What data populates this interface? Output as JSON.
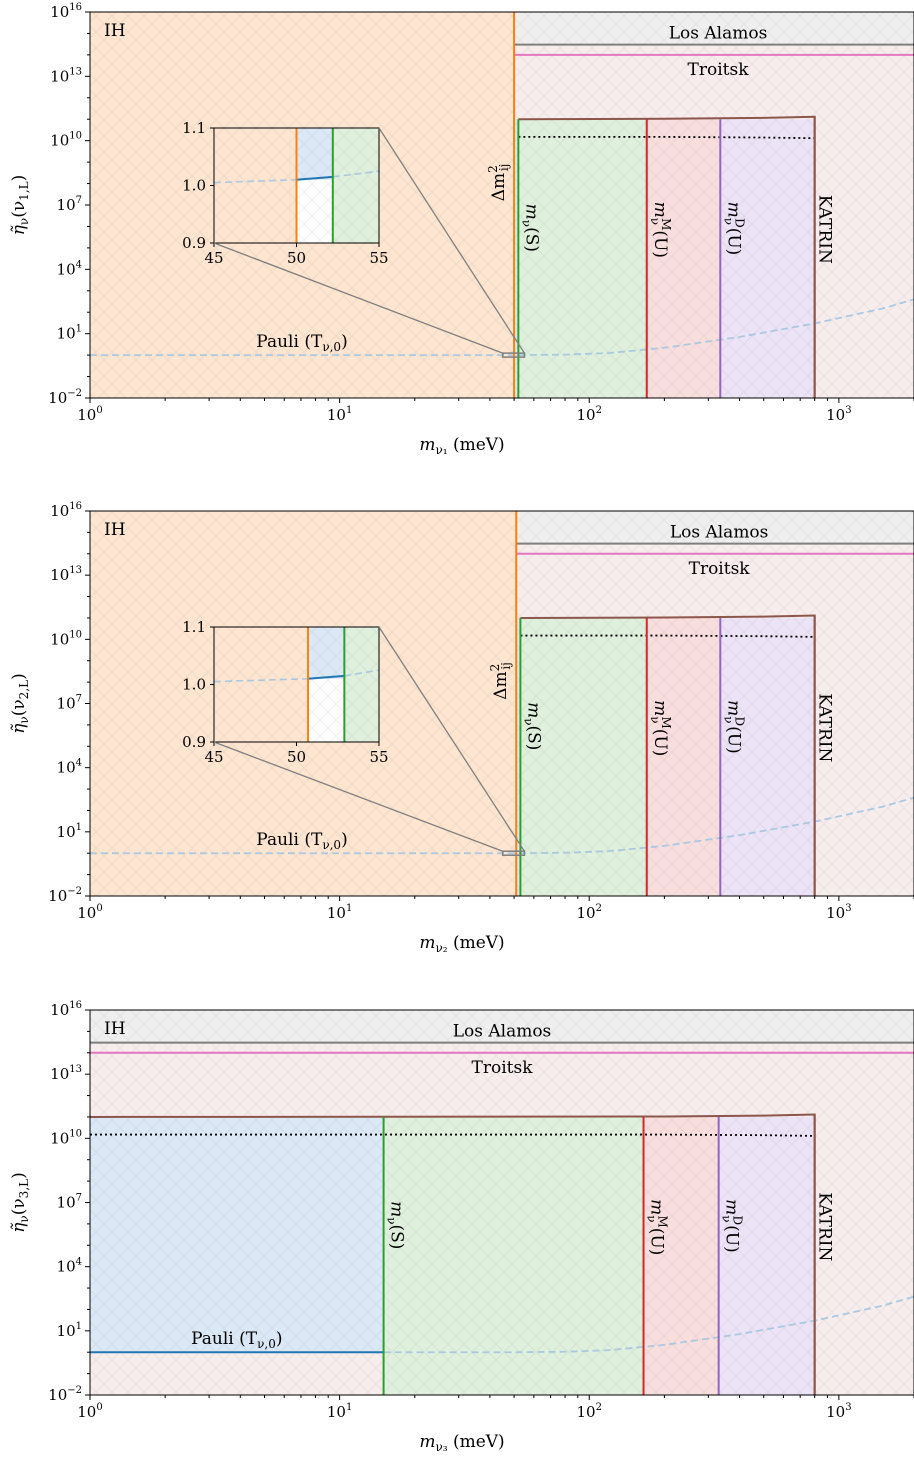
{
  "figure": {
    "subplots": [
      {
        "panel_label": "IH",
        "xlabel": {
          "main": "m",
          "sub": "ν₁",
          "unit": " (meV)"
        },
        "ylabel": {
          "prefix": "η̃",
          "sub": "ν",
          "arg": "(ν",
          "arg_sub": "1,L",
          "arg_end": ")"
        },
        "annotations": {
          "los_alamos": "Los Alamos",
          "troitsk": "Troitsk",
          "pauli": "Pauli (T",
          "pauli_sub": "ν,0",
          "pauli_end": ")",
          "dm2": "Δm",
          "dm2_sup": "2",
          "dm2_sub": "ij",
          "ms": "m",
          "ms_sub": "ν",
          "ms_arg": "(S)",
          "mm": "m",
          "mm_sup": "M",
          "mm_sub": "ν",
          "mm_arg": "(U)",
          "md": "m",
          "md_sup": "D",
          "md_sub": "ν",
          "md_arg": "(U)",
          "katrin": "KATRIN"
        },
        "inset": {
          "yticks": [
            "1.1",
            "1.0",
            "0.9"
          ],
          "xticks": [
            "45",
            "50",
            "55"
          ]
        }
      },
      {
        "panel_label": "IH",
        "xlabel": {
          "main": "m",
          "sub": "ν₂",
          "unit": " (meV)"
        },
        "ylabel": {
          "prefix": "η̃",
          "sub": "ν",
          "arg": "(ν",
          "arg_sub": "2,L",
          "arg_end": ")"
        },
        "annotations": {
          "los_alamos": "Los Alamos",
          "troitsk": "Troitsk",
          "pauli": "Pauli (T",
          "pauli_sub": "ν,0",
          "pauli_end": ")",
          "dm2": "Δm",
          "dm2_sup": "2",
          "dm2_sub": "ij",
          "ms": "m",
          "ms_sub": "ν",
          "ms_arg": "(S)",
          "mm": "m",
          "mm_sup": "M",
          "mm_sub": "ν",
          "mm_arg": "(U)",
          "md": "m",
          "md_sup": "D",
          "md_sub": "ν",
          "md_arg": "(U)",
          "katrin": "KATRIN"
        },
        "inset": {
          "yticks": [
            "1.1",
            "1.0",
            "0.9"
          ],
          "xticks": [
            "45",
            "50",
            "55"
          ]
        }
      },
      {
        "panel_label": "IH",
        "xlabel": {
          "main": "m",
          "sub": "ν₃",
          "unit": " (meV)"
        },
        "ylabel": {
          "prefix": "η̃",
          "sub": "ν",
          "arg": "(ν",
          "arg_sub": "3,L",
          "arg_end": ")"
        },
        "annotations": {
          "los_alamos": "Los Alamos",
          "troitsk": "Troitsk",
          "pauli": "Pauli (T",
          "pauli_sub": "ν,0",
          "pauli_end": ")",
          "ms": "m",
          "ms_sub": "ν",
          "ms_arg": "(S)",
          "mm": "m",
          "mm_sup": "M",
          "mm_sub": "ν",
          "mm_arg": "(U)",
          "md": "m",
          "md_sup": "D",
          "md_sub": "ν",
          "md_arg": "(U)",
          "katrin": "KATRIN"
        }
      }
    ],
    "xticks": [
      {
        "base": "10",
        "exp": "0"
      },
      {
        "base": "10",
        "exp": "1"
      },
      {
        "base": "10",
        "exp": "2"
      },
      {
        "base": "10",
        "exp": "3"
      }
    ],
    "yticks": [
      {
        "base": "10",
        "exp": "16"
      },
      {
        "base": "10",
        "exp": "13"
      },
      {
        "base": "10",
        "exp": "10"
      },
      {
        "base": "10",
        "exp": "7"
      },
      {
        "base": "10",
        "exp": "4"
      },
      {
        "base": "10",
        "exp": "1"
      },
      {
        "base": "10",
        "exp": "−2"
      }
    ]
  },
  "colors": {
    "dm2": "#ff7f0e",
    "ms": "#2ca02c",
    "mm": "#d62728",
    "md": "#9467bd",
    "katrin": "#8c564b",
    "los_alamos": "#7f7f7f",
    "troitsk": "#e377c2",
    "pauli": "#1f77b4",
    "kinematic": "#000000"
  },
  "chart_data": [
    {
      "type": "area",
      "title": "",
      "x_scale": "log",
      "y_scale": "log",
      "xlim": [
        1,
        2000
      ],
      "ylim": [
        0.01,
        1e+16
      ],
      "grid": false,
      "region_left_bound": {
        "name": "Δm²ij",
        "x": 50,
        "fill_up_to": 1e+16
      },
      "vertical_bounds": [
        {
          "name": "Δm²ij",
          "x": 50
        },
        {
          "name": "mν(S)",
          "x": 52
        },
        {
          "name": "mν^M(U)",
          "x": 170
        },
        {
          "name": "mν^D(U)",
          "x": 335
        },
        {
          "name": "KATRIN",
          "x": 800
        }
      ],
      "horizontal_bounds": [
        {
          "name": "Los Alamos",
          "y": 300000000000000.0,
          "x_from": 50,
          "x_to": 2000
        },
        {
          "name": "Troitsk",
          "y": 100000000000000.0,
          "x_from": 50,
          "x_to": 2000
        }
      ],
      "katrin_curve": {
        "x": [
          52,
          200,
          500,
          800
        ],
        "y": [
          100000000000.0,
          105000000000.0,
          115000000000.0,
          130000000000.0
        ]
      },
      "dotted_curve": {
        "x": [
          52,
          200,
          500,
          800
        ],
        "y": [
          15000000000.0,
          15000000000.0,
          14000000000.0,
          13000000000.0
        ]
      },
      "pauli_curve": {
        "x": [
          1,
          10,
          30,
          50,
          80,
          120,
          200,
          400,
          800,
          1500,
          2000
        ],
        "y": [
          1.0,
          1.0,
          1.0,
          1.0,
          1.05,
          1.25,
          2.2,
          7,
          30,
          150,
          400
        ]
      },
      "inset": {
        "xlim": [
          45,
          55
        ],
        "ylim": [
          0.9,
          1.1
        ],
        "vlines": [
          {
            "name": "Δm²ij",
            "x": 50
          },
          {
            "name": "mν(S)",
            "x": 52.2
          }
        ],
        "pauli_x": [
          45,
          50,
          52.2,
          55
        ],
        "pauli_y": [
          1.005,
          1.01,
          1.015,
          1.025
        ]
      }
    },
    {
      "type": "area",
      "title": "",
      "x_scale": "log",
      "y_scale": "log",
      "xlim": [
        1,
        2000
      ],
      "ylim": [
        0.01,
        1e+16
      ],
      "grid": false,
      "region_left_bound": {
        "name": "Δm²ij",
        "x": 51,
        "fill_up_to": 1e+16
      },
      "vertical_bounds": [
        {
          "name": "Δm²ij",
          "x": 51
        },
        {
          "name": "mν(S)",
          "x": 53
        },
        {
          "name": "mν^M(U)",
          "x": 170
        },
        {
          "name": "mν^D(U)",
          "x": 335
        },
        {
          "name": "KATRIN",
          "x": 800
        }
      ],
      "horizontal_bounds": [
        {
          "name": "Los Alamos",
          "y": 300000000000000.0,
          "x_from": 51,
          "x_to": 2000
        },
        {
          "name": "Troitsk",
          "y": 100000000000000.0,
          "x_from": 51,
          "x_to": 2000
        }
      ],
      "katrin_curve": {
        "x": [
          53,
          200,
          500,
          800
        ],
        "y": [
          100000000000.0,
          105000000000.0,
          115000000000.0,
          130000000000.0
        ]
      },
      "dotted_curve": {
        "x": [
          53,
          200,
          500,
          800
        ],
        "y": [
          15000000000.0,
          15000000000.0,
          14000000000.0,
          13000000000.0
        ]
      },
      "pauli_curve": {
        "x": [
          1,
          10,
          30,
          50,
          80,
          120,
          200,
          400,
          800,
          1500,
          2000
        ],
        "y": [
          1.0,
          1.0,
          1.0,
          1.0,
          1.05,
          1.25,
          2.2,
          7,
          30,
          150,
          400
        ]
      },
      "inset": {
        "xlim": [
          45,
          55
        ],
        "ylim": [
          0.9,
          1.1
        ],
        "vlines": [
          {
            "name": "Δm²ij",
            "x": 50.7
          },
          {
            "name": "mν(S)",
            "x": 52.9
          }
        ],
        "pauli_x": [
          45,
          50.7,
          52.9,
          55
        ],
        "pauli_y": [
          1.005,
          1.01,
          1.015,
          1.025
        ]
      }
    },
    {
      "type": "area",
      "title": "",
      "x_scale": "log",
      "y_scale": "log",
      "xlim": [
        1,
        2000
      ],
      "ylim": [
        0.01,
        1e+16
      ],
      "grid": false,
      "vertical_bounds": [
        {
          "name": "mν(S)",
          "x": 15
        },
        {
          "name": "mν^M(U)",
          "x": 165
        },
        {
          "name": "mν^D(U)",
          "x": 330
        },
        {
          "name": "KATRIN",
          "x": 800
        }
      ],
      "horizontal_bounds": [
        {
          "name": "Los Alamos",
          "y": 300000000000000.0,
          "x_from": 1,
          "x_to": 2000
        },
        {
          "name": "Troitsk",
          "y": 100000000000000.0,
          "x_from": 1,
          "x_to": 2000
        }
      ],
      "katrin_curve": {
        "x": [
          1,
          200,
          500,
          800
        ],
        "y": [
          100000000000.0,
          105000000000.0,
          115000000000.0,
          130000000000.0
        ]
      },
      "dotted_curve": {
        "x": [
          1,
          200,
          500,
          800
        ],
        "y": [
          15000000000.0,
          15000000000.0,
          14000000000.0,
          13000000000.0
        ]
      },
      "pauli_line": {
        "x": [
          1,
          15
        ],
        "y": [
          1.0,
          1.0
        ]
      },
      "pauli_curve": {
        "x": [
          15,
          30,
          50,
          80,
          120,
          200,
          400,
          800,
          1500,
          2000
        ],
        "y": [
          1.0,
          1.0,
          1.0,
          1.05,
          1.25,
          2.2,
          7,
          30,
          150,
          400
        ]
      }
    }
  ]
}
